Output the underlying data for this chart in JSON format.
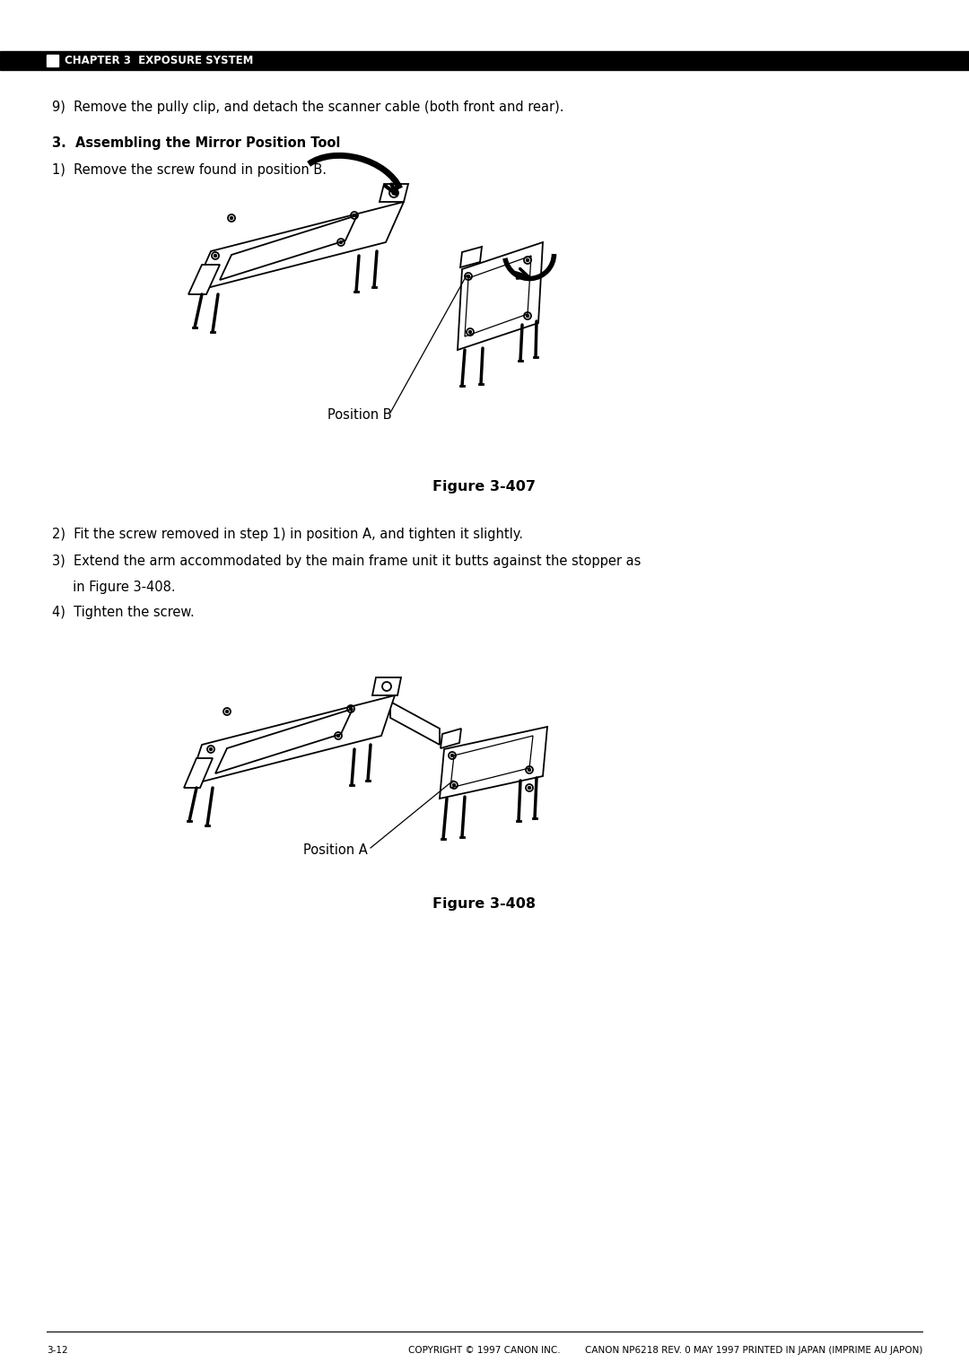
{
  "page_bg": "#ffffff",
  "header_bar_color": "#000000",
  "header_text": "CHAPTER 3  EXPOSURE SYSTEM",
  "header_text_color": "#ffffff",
  "header_font_size": 8.5,
  "body_text_color": "#000000",
  "body_font_size": 10.5,
  "footer_text_left": "3-12",
  "footer_text_center": "COPYRIGHT © 1997 CANON INC.",
  "footer_text_right": "CANON NP6218 REV. 0 MAY 1997 PRINTED IN JAPAN (IMPRIME AU JAPON)",
  "footer_font_size": 7.5,
  "line1": "9)  Remove the pully clip, and detach the scanner cable (both front and rear).",
  "section_title": "3.  Assembling the Mirror Position Tool",
  "step1": "1)  Remove the screw found in position B.",
  "figure_407_label": "Figure 3-407",
  "step2": "2)  Fit the screw removed in step 1) in position A, and tighten it slightly.",
  "step3": "3)  Extend the arm accommodated by the main frame unit it butts against the stopper as",
  "step3b": "     in Figure 3-408.",
  "step4": "4)  Tighten the screw.",
  "figure_408_label": "Figure 3-408",
  "position_b_label": "Position B",
  "position_a_label": "Position A"
}
